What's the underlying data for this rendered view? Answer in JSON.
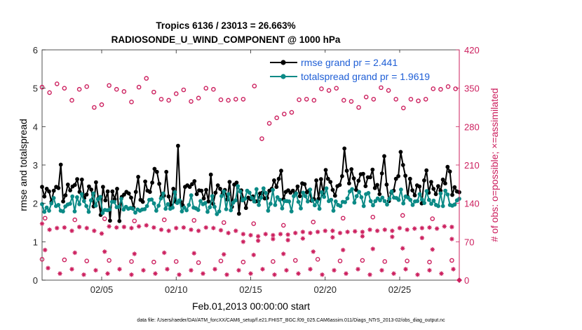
{
  "chart_data": {
    "type": "line",
    "title_line1": "Tropics 6136 / 23013 = 26.663%",
    "title_line2": "RADIOSONDE_U_WIND_COMPONENT @ 1000 hPa",
    "xlabel": "Feb.01,2013 00:00:00 start",
    "ylabel_left": "rmse and totalspread",
    "ylabel_right": "# of obs: o=possible; ×=assimilated",
    "footnote": "data file: /Users/raeder/DAI/ATM_forcXX/CAM6_setup/f.e21.FHIST_BGC.f09_025.CAM6assim.011/Diags_NTrS_2013-02/obs_diag_output.nc",
    "xlim": [
      1,
      29
    ],
    "ylim_left": [
      0,
      6
    ],
    "ylim_right": [
      0,
      420
    ],
    "x_ticks": [
      5,
      10,
      15,
      20,
      25
    ],
    "x_tick_labels": [
      "02/05",
      "02/10",
      "02/15",
      "02/20",
      "02/25"
    ],
    "y_ticks_left": [
      "0",
      "1",
      "2",
      "3",
      "4",
      "5",
      "6"
    ],
    "y_ticks_right": [
      "0",
      "70",
      "140",
      "210",
      "280",
      "350",
      "420"
    ],
    "colors": {
      "rmse": "#000000",
      "totalspread": "#0b8a86",
      "obs": "#cc1f5e",
      "legend_text": "#1f5fd6"
    },
    "legend": [
      {
        "name": "rmse",
        "label": "rmse grand pr = 2.441"
      },
      {
        "name": "totalspread",
        "label": "totalspread grand pr = 1.9619"
      }
    ],
    "series": [
      {
        "name": "rmse",
        "values": [
          2.43,
          2.18,
          2.38,
          2.31,
          2.04,
          2.33,
          2.43,
          2.4,
          3.01,
          2.05,
          2.21,
          2.49,
          2.34,
          2.44,
          2.48,
          2.63,
          2.3,
          2.62,
          2.14,
          2.23,
          2.44,
          2.36,
          1.92,
          2.55,
          2.13,
          1.7,
          2.43,
          2.08,
          2.31,
          1.55,
          2.31,
          2.11,
          2.38,
          1.54,
          2.17,
          2.23,
          2.3,
          2.26,
          2.15,
          1.89,
          2.3,
          2.69,
          2.09,
          2.04,
          2.57,
          2.33,
          2.3,
          2.54,
          2.9,
          2.82,
          2.51,
          2.18,
          2.2,
          2.82,
          2.18,
          1.95,
          2.38,
          2.04,
          3.5,
          2.05,
          1.95,
          2.43,
          2.47,
          2.43,
          2.5,
          2.58,
          2.24,
          2.34,
          2.33,
          2.13,
          2.35,
          2.05,
          2.75,
          1.99,
          2.28,
          2.47,
          2.38,
          2.25,
          2.35,
          2.1,
          2.56,
          1.91,
          2.49,
          2.54,
          1.73,
          2.34,
          2.12,
          1.88,
          2.15,
          2.11,
          2.18,
          2.05,
          2.06,
          2.26,
          2.28,
          2.13,
          2.14,
          2.33,
          2.38,
          2.6,
          2.43,
          2.64,
          2.85,
          2.11,
          2.3,
          2.34,
          2.28,
          2.33,
          2.26,
          2.44,
          2.19,
          2.52,
          2.5,
          2.29,
          2.34,
          2.07,
          2.11,
          2.6,
          2.12,
          2.63,
          2.23,
          2.87,
          2.64,
          2.56,
          2.35,
          2.2,
          2.45,
          2.48,
          2.71,
          3.43,
          2.85,
          2.52,
          2.89,
          2.65,
          2.35,
          2.59,
          2.76,
          2.77,
          2.45,
          2.68,
          2.68,
          2.88,
          2.4,
          2.48,
          2.24,
          2.78,
          3.23,
          2.49,
          2.06,
          2.28,
          2.33,
          2.64,
          2.71,
          3.34,
          3.0,
          2.72,
          2.17,
          2.64,
          2.34,
          2.21,
          2.47,
          2.44,
          2.0,
          2.6,
          2.86,
          2.28,
          2.56,
          2.38,
          2.24,
          2.45,
          2.33,
          2.62,
          2.52,
          2.95,
          2.83,
          2.22,
          2.42,
          2.31,
          2.29
        ]
      },
      {
        "name": "totalspread",
        "values": [
          1.98,
          1.78,
          1.89,
          1.81,
          2.0,
          2.14,
          1.93,
          1.96,
          1.81,
          1.79,
          1.92,
          1.97,
          1.99,
          2.18,
          1.79,
          2.16,
          1.98,
          2.24,
          2.06,
          1.93,
          1.78,
          2.08,
          2.26,
          1.94,
          2.11,
          2.17,
          1.75,
          1.83,
          1.82,
          1.84,
          2.04,
          2.04,
          1.9,
          1.91,
          2.12,
          1.84,
          1.91,
          1.86,
          1.88,
          1.86,
          1.76,
          1.84,
          1.81,
          1.84,
          1.85,
          1.93,
          2.09,
          2.1,
          2.0,
          1.81,
          1.94,
          2.13,
          2.26,
          1.86,
          1.98,
          1.86,
          1.89,
          2.29,
          2.01,
          2.08,
          1.79,
          1.89,
          1.82,
          1.96,
          2.21,
          1.89,
          1.87,
          1.83,
          2.06,
          1.98,
          2.01,
          1.78,
          1.9,
          2.19,
          1.91,
          1.72,
          1.79,
          2.19,
          2.31,
          1.85,
          2.24,
          1.82,
          2.02,
          2.08,
          2.45,
          2.31,
          2.08,
          2.12,
          2.33,
          2.28,
          2.14,
          2.05,
          2.37,
          1.96,
          2.15,
          2.39,
          2.27,
          1.81,
          1.99,
          2.35,
          1.96,
          2.16,
          2.09,
          1.87,
          2.06,
          2.06,
          2.05,
          1.79,
          2.19,
          2.26,
          2.04,
          1.87,
          2.28,
          2.19,
          2.05,
          2.36,
          2.08,
          1.95,
          2.05,
          1.86,
          2.29,
          2.17,
          2.39,
          2.06,
          2.09,
          1.81,
          2.05,
          1.96,
          1.93,
          2.04,
          2.03,
          2.13,
          2.31,
          2.37,
          2.02,
          2.19,
          2.3,
          2.16,
          1.93,
          2.24,
          2.27,
          2.06,
          1.95,
          2.06,
          2.13,
          2.08,
          2.15,
          2.06,
          1.97,
          2.12,
          2.31,
          2.15,
          2.14,
          2.09,
          2.36,
          2.0,
          2.18,
          2.15,
          2.09,
          1.96,
          2.05,
          2.06,
          2.24,
          2.1,
          2.01,
          2.32,
          2.09,
          1.99,
          2.07,
          1.96,
          1.93,
          2.26,
          1.93,
          2.33,
          2.23,
          1.96,
          1.94,
          1.97,
          2.08,
          2.12
        ]
      }
    ],
    "obs_possible": [
      {
        "x": 1.0,
        "v": 352
      },
      {
        "x": 1.5,
        "v": 342
      },
      {
        "x": 2.0,
        "v": 358
      },
      {
        "x": 2.5,
        "v": 350
      },
      {
        "x": 3.0,
        "v": 328
      },
      {
        "x": 3.5,
        "v": 348
      },
      {
        "x": 4.0,
        "v": 353
      },
      {
        "x": 4.5,
        "v": 315
      },
      {
        "x": 5.0,
        "v": 320
      },
      {
        "x": 5.5,
        "v": 355
      },
      {
        "x": 6.0,
        "v": 348
      },
      {
        "x": 6.5,
        "v": 344
      },
      {
        "x": 7.0,
        "v": 325
      },
      {
        "x": 7.5,
        "v": 352
      },
      {
        "x": 8.0,
        "v": 368
      },
      {
        "x": 8.5,
        "v": 343
      },
      {
        "x": 9.0,
        "v": 330
      },
      {
        "x": 9.5,
        "v": 328
      },
      {
        "x": 10.0,
        "v": 340
      },
      {
        "x": 10.5,
        "v": 347
      },
      {
        "x": 11.0,
        "v": 326
      },
      {
        "x": 11.5,
        "v": 332
      },
      {
        "x": 12.0,
        "v": 350
      },
      {
        "x": 12.5,
        "v": 348
      },
      {
        "x": 13.0,
        "v": 329
      },
      {
        "x": 13.5,
        "v": 328
      },
      {
        "x": 14.0,
        "v": 330
      },
      {
        "x": 14.5,
        "v": 330
      },
      {
        "x": 15.25,
        "v": 354
      },
      {
        "x": 15.75,
        "v": 258
      },
      {
        "x": 16.25,
        "v": 286
      },
      {
        "x": 16.75,
        "v": 296
      },
      {
        "x": 17.25,
        "v": 303
      },
      {
        "x": 17.75,
        "v": 306
      },
      {
        "x": 18.25,
        "v": 329
      },
      {
        "x": 18.75,
        "v": 330
      },
      {
        "x": 19.25,
        "v": 328
      },
      {
        "x": 19.75,
        "v": 349
      },
      {
        "x": 20.25,
        "v": 346
      },
      {
        "x": 20.75,
        "v": 350
      },
      {
        "x": 21.25,
        "v": 328
      },
      {
        "x": 21.75,
        "v": 326
      },
      {
        "x": 22.25,
        "v": 315
      },
      {
        "x": 22.75,
        "v": 334
      },
      {
        "x": 23.25,
        "v": 330
      },
      {
        "x": 23.75,
        "v": 351
      },
      {
        "x": 24.25,
        "v": 346
      },
      {
        "x": 24.75,
        "v": 330
      },
      {
        "x": 25.25,
        "v": 314
      },
      {
        "x": 25.75,
        "v": 330
      },
      {
        "x": 26.25,
        "v": 327
      },
      {
        "x": 26.75,
        "v": 330
      },
      {
        "x": 27.25,
        "v": 349
      },
      {
        "x": 27.75,
        "v": 348
      },
      {
        "x": 28.25,
        "v": 353
      },
      {
        "x": 28.75,
        "v": 349
      },
      {
        "x": 1.2,
        "v": 113
      },
      {
        "x": 3.2,
        "v": 110
      },
      {
        "x": 5.2,
        "v": 112
      },
      {
        "x": 7.2,
        "v": 108
      },
      {
        "x": 9.2,
        "v": 110
      },
      {
        "x": 11.2,
        "v": 109
      },
      {
        "x": 13.2,
        "v": 105
      },
      {
        "x": 15.2,
        "v": 103
      },
      {
        "x": 17.2,
        "v": 100
      },
      {
        "x": 19.2,
        "v": 106
      },
      {
        "x": 21.2,
        "v": 113
      },
      {
        "x": 23.2,
        "v": 115
      },
      {
        "x": 25.2,
        "v": 118
      },
      {
        "x": 27.2,
        "v": 112
      },
      {
        "x": 1.0,
        "v": 38
      },
      {
        "x": 2.5,
        "v": 37
      },
      {
        "x": 4.0,
        "v": 35
      },
      {
        "x": 5.5,
        "v": 36
      },
      {
        "x": 7.0,
        "v": 34
      },
      {
        "x": 8.5,
        "v": 33
      },
      {
        "x": 10.0,
        "v": 34
      },
      {
        "x": 11.5,
        "v": 32
      },
      {
        "x": 13.0,
        "v": 35
      },
      {
        "x": 14.5,
        "v": 33
      },
      {
        "x": 16.5,
        "v": 34
      },
      {
        "x": 18.0,
        "v": 36
      },
      {
        "x": 19.5,
        "v": 38
      },
      {
        "x": 21.0,
        "v": 35
      },
      {
        "x": 22.5,
        "v": 36
      },
      {
        "x": 24.0,
        "v": 34
      },
      {
        "x": 25.5,
        "v": 35
      },
      {
        "x": 27.0,
        "v": 33
      },
      {
        "x": 28.5,
        "v": 36
      }
    ],
    "obs_assimilated": [
      {
        "x": 1.0,
        "v": 103
      },
      {
        "x": 1.5,
        "v": 92
      },
      {
        "x": 2.0,
        "v": 95
      },
      {
        "x": 2.5,
        "v": 96
      },
      {
        "x": 3.0,
        "v": 90
      },
      {
        "x": 3.5,
        "v": 97
      },
      {
        "x": 4.0,
        "v": 95
      },
      {
        "x": 4.5,
        "v": 90
      },
      {
        "x": 5.0,
        "v": 85
      },
      {
        "x": 5.5,
        "v": 98
      },
      {
        "x": 6.0,
        "v": 96
      },
      {
        "x": 6.5,
        "v": 97
      },
      {
        "x": 7.0,
        "v": 95
      },
      {
        "x": 7.5,
        "v": 98
      },
      {
        "x": 8.0,
        "v": 100
      },
      {
        "x": 8.5,
        "v": 96
      },
      {
        "x": 9.0,
        "v": 92
      },
      {
        "x": 9.5,
        "v": 90
      },
      {
        "x": 10.0,
        "v": 95
      },
      {
        "x": 10.5,
        "v": 96
      },
      {
        "x": 11.0,
        "v": 92
      },
      {
        "x": 11.5,
        "v": 90
      },
      {
        "x": 12.0,
        "v": 96
      },
      {
        "x": 12.5,
        "v": 95
      },
      {
        "x": 13.0,
        "v": 91
      },
      {
        "x": 13.5,
        "v": 86
      },
      {
        "x": 14.0,
        "v": 90
      },
      {
        "x": 14.5,
        "v": 84
      },
      {
        "x": 15.0,
        "v": 82
      },
      {
        "x": 15.5,
        "v": 80
      },
      {
        "x": 16.0,
        "v": 84
      },
      {
        "x": 16.5,
        "v": 82
      },
      {
        "x": 17.0,
        "v": 84
      },
      {
        "x": 17.5,
        "v": 83
      },
      {
        "x": 18.0,
        "v": 86
      },
      {
        "x": 18.5,
        "v": 88
      },
      {
        "x": 19.0,
        "v": 86
      },
      {
        "x": 19.5,
        "v": 88
      },
      {
        "x": 20.0,
        "v": 90
      },
      {
        "x": 20.5,
        "v": 90
      },
      {
        "x": 21.0,
        "v": 86
      },
      {
        "x": 21.5,
        "v": 88
      },
      {
        "x": 22.0,
        "v": 89
      },
      {
        "x": 22.5,
        "v": 88
      },
      {
        "x": 23.0,
        "v": 92
      },
      {
        "x": 23.5,
        "v": 90
      },
      {
        "x": 24.0,
        "v": 92
      },
      {
        "x": 24.5,
        "v": 90
      },
      {
        "x": 25.0,
        "v": 95
      },
      {
        "x": 25.5,
        "v": 92
      },
      {
        "x": 26.0,
        "v": 94
      },
      {
        "x": 26.5,
        "v": 95
      },
      {
        "x": 27.0,
        "v": 96
      },
      {
        "x": 27.5,
        "v": 94
      },
      {
        "x": 28.0,
        "v": 98
      },
      {
        "x": 28.5,
        "v": 97
      },
      {
        "x": 1.4,
        "v": 22
      },
      {
        "x": 2.2,
        "v": 12
      },
      {
        "x": 3.0,
        "v": 20
      },
      {
        "x": 3.8,
        "v": 10
      },
      {
        "x": 4.6,
        "v": 18
      },
      {
        "x": 5.4,
        "v": 12
      },
      {
        "x": 6.2,
        "v": 20
      },
      {
        "x": 7.0,
        "v": 10
      },
      {
        "x": 7.8,
        "v": 18
      },
      {
        "x": 8.6,
        "v": 12
      },
      {
        "x": 9.4,
        "v": 20
      },
      {
        "x": 10.2,
        "v": 10
      },
      {
        "x": 11.0,
        "v": 18
      },
      {
        "x": 11.8,
        "v": 12
      },
      {
        "x": 12.6,
        "v": 20
      },
      {
        "x": 13.4,
        "v": 10
      },
      {
        "x": 14.2,
        "v": 18
      },
      {
        "x": 15.0,
        "v": 12
      },
      {
        "x": 15.8,
        "v": 20
      },
      {
        "x": 16.6,
        "v": 10
      },
      {
        "x": 17.4,
        "v": 18
      },
      {
        "x": 18.2,
        "v": 12
      },
      {
        "x": 19.0,
        "v": 20
      },
      {
        "x": 19.8,
        "v": 10
      },
      {
        "x": 20.6,
        "v": 18
      },
      {
        "x": 21.4,
        "v": 12
      },
      {
        "x": 22.2,
        "v": 20
      },
      {
        "x": 23.0,
        "v": 10
      },
      {
        "x": 23.8,
        "v": 18
      },
      {
        "x": 24.6,
        "v": 12
      },
      {
        "x": 25.4,
        "v": 20
      },
      {
        "x": 26.2,
        "v": 10
      },
      {
        "x": 27.0,
        "v": 18
      },
      {
        "x": 27.8,
        "v": 12
      },
      {
        "x": 28.6,
        "v": 20
      },
      {
        "x": 1.2,
        "v": 55
      },
      {
        "x": 3.2,
        "v": 50
      },
      {
        "x": 5.2,
        "v": 52
      },
      {
        "x": 7.2,
        "v": 48
      },
      {
        "x": 9.2,
        "v": 50
      },
      {
        "x": 11.2,
        "v": 49
      },
      {
        "x": 13.2,
        "v": 47
      },
      {
        "x": 15.2,
        "v": 46
      },
      {
        "x": 17.2,
        "v": 48
      },
      {
        "x": 19.2,
        "v": 52
      },
      {
        "x": 21.2,
        "v": 55
      },
      {
        "x": 23.2,
        "v": 57
      },
      {
        "x": 25.2,
        "v": 58
      },
      {
        "x": 27.2,
        "v": 56
      },
      {
        "x": 14.5,
        "v": 70
      },
      {
        "x": 15.5,
        "v": 72
      },
      {
        "x": 16.5,
        "v": 75
      },
      {
        "x": 17.5,
        "v": 73
      },
      {
        "x": 18.5,
        "v": 76
      },
      {
        "x": 20.5,
        "v": 78
      },
      {
        "x": 22.5,
        "v": 80
      },
      {
        "x": 24.5,
        "v": 79
      },
      {
        "x": 26.5,
        "v": 77
      },
      {
        "x": 28.5,
        "v": 75
      }
    ]
  }
}
